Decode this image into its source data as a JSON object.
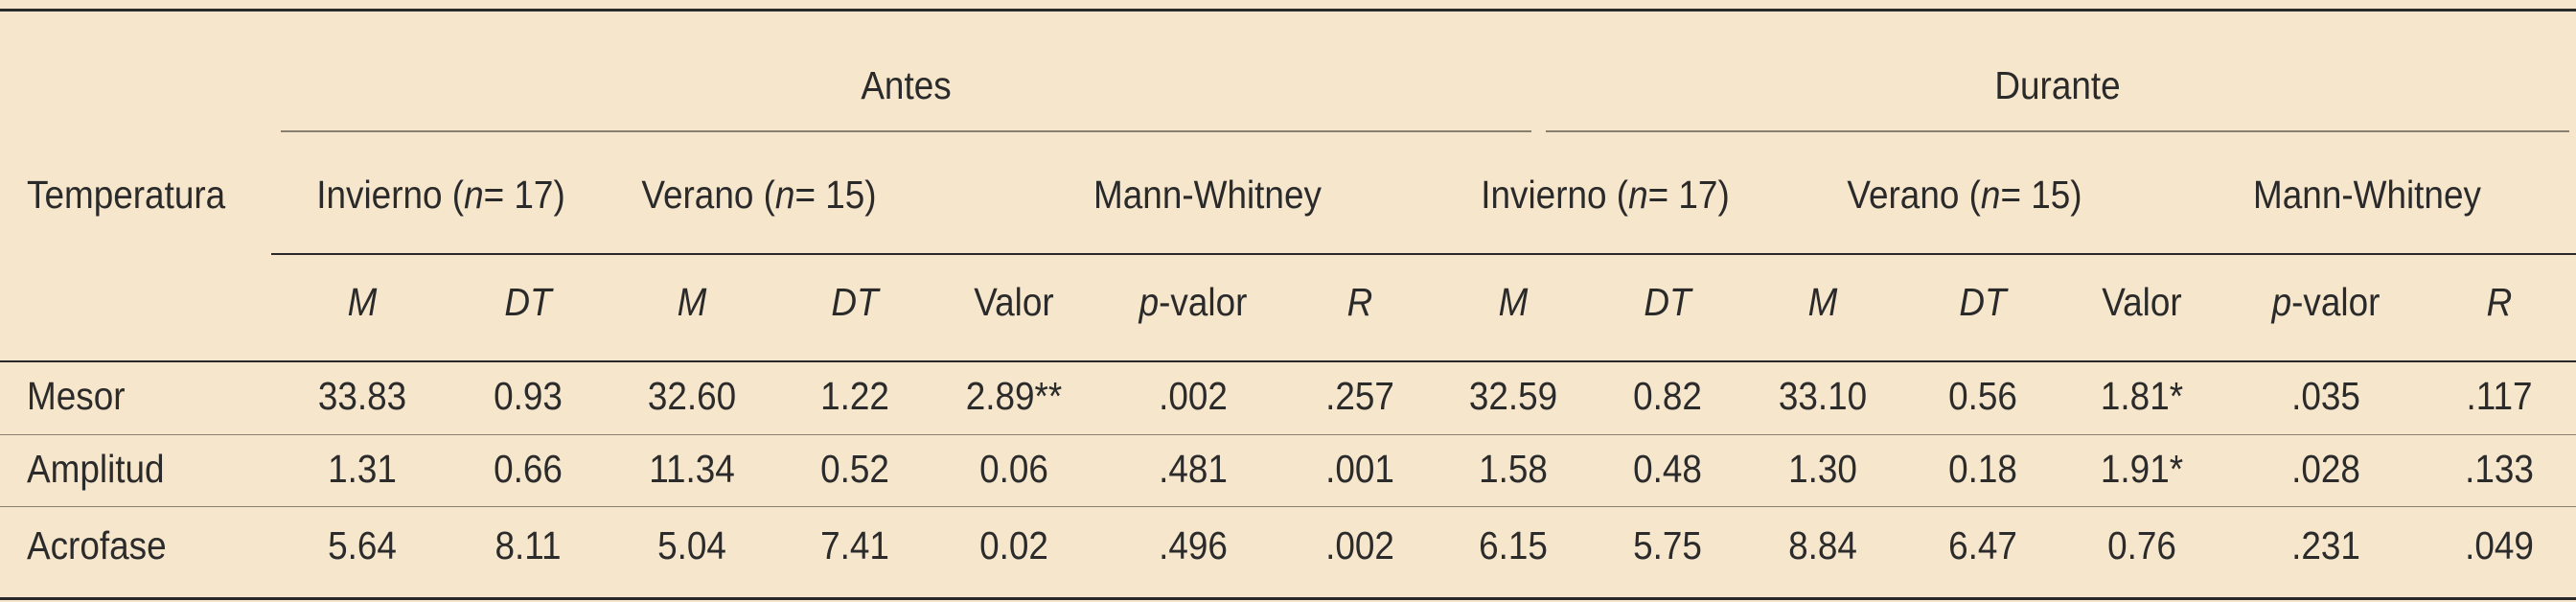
{
  "table": {
    "stub_header": "Temperatura",
    "groups": [
      {
        "label": "Antes"
      },
      {
        "label": "Durante"
      }
    ],
    "subgroups": [
      {
        "pre": "Invierno (",
        "n": "n",
        "post": " = 17)"
      },
      {
        "pre": "Verano (",
        "n": "n",
        "post": " = 15)"
      },
      {
        "label": "Mann-Whitney"
      },
      {
        "pre": "Invierno (",
        "n": "n",
        "post": " = 17)"
      },
      {
        "pre": "Verano (",
        "n": "n",
        "post": " = 15)"
      },
      {
        "label": "Mann-Whitney"
      }
    ],
    "columns": [
      {
        "label": "M",
        "italic": true
      },
      {
        "label": "DT",
        "italic": true
      },
      {
        "label": "M",
        "italic": true
      },
      {
        "label": "DT",
        "italic": true
      },
      {
        "label": "Valor",
        "italic": false
      },
      {
        "p": "p",
        "rest": "-valor"
      },
      {
        "label": "R",
        "italic": true
      },
      {
        "label": "M",
        "italic": true
      },
      {
        "label": "DT",
        "italic": true
      },
      {
        "label": "M",
        "italic": true
      },
      {
        "label": "DT",
        "italic": true
      },
      {
        "label": "Valor",
        "italic": false
      },
      {
        "p": "p",
        "rest": "-valor"
      },
      {
        "label": "R",
        "italic": true
      }
    ],
    "rows": [
      {
        "label": "Mesor",
        "values": [
          "33.83",
          "0.93",
          "32.60",
          "1.22",
          "2.89**",
          ".002",
          ".257",
          "32.59",
          "0.82",
          "33.10",
          "0.56",
          "1.81*",
          ".035",
          ".117"
        ]
      },
      {
        "label": "Amplitud",
        "values": [
          "1.31",
          "0.66",
          "11.34",
          "0.52",
          "0.06",
          ".481",
          ".001",
          "1.58",
          "0.48",
          "1.30",
          "0.18",
          "1.91*",
          ".028",
          ".133"
        ]
      },
      {
        "label": "Acrofase",
        "values": [
          "5.64",
          "8.11",
          "5.04",
          "7.41",
          "0.02",
          ".496",
          ".002",
          "6.15",
          "5.75",
          "8.84",
          "6.47",
          "0.76",
          ".231",
          ".049"
        ]
      }
    ]
  }
}
